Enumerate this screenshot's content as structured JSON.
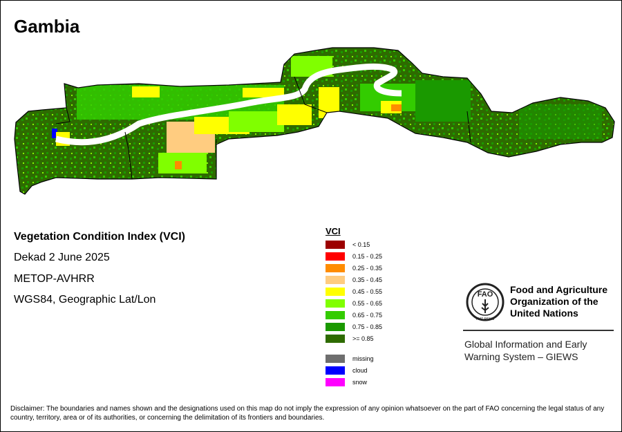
{
  "title": "Gambia",
  "meta": {
    "index_name": "Vegetation Condition Index (VCI)",
    "period": "Dekad 2 June 2025",
    "sensor": "METOP-AVHRR",
    "projection": "WGS84, Geographic Lat/Lon"
  },
  "legend": {
    "title": "VCI",
    "classes": [
      {
        "label": "< 0.15",
        "color": "#9c0000"
      },
      {
        "label": "0.15 - 0.25",
        "color": "#ff0000"
      },
      {
        "label": "0.25 - 0.35",
        "color": "#ff8c00"
      },
      {
        "label": "0.35 - 0.45",
        "color": "#ffcc80"
      },
      {
        "label": "0.45 - 0.55",
        "color": "#ffff00"
      },
      {
        "label": "0.55 - 0.65",
        "color": "#80ff00"
      },
      {
        "label": "0.65 - 0.75",
        "color": "#33cc00"
      },
      {
        "label": "0.75 - 0.85",
        "color": "#1a9900"
      },
      {
        "label": ">= 0.85",
        "color": "#2e6b00"
      }
    ],
    "special": [
      {
        "label": "missing",
        "color": "#6e6e6e"
      },
      {
        "label": "cloud",
        "color": "#0000ff"
      },
      {
        "label": "snow",
        "color": "#ff00ff"
      }
    ]
  },
  "organization": {
    "name_line1": "Food and Agriculture",
    "name_line2": "Organization of the",
    "name_line3": "United Nations",
    "logo_text": "FAO",
    "logo_motto": "FIAT PANIS",
    "system_line1": "Global Information and Early",
    "system_line2": "Warning System – GIEWS"
  },
  "disclaimer": "Disclaimer: The boundaries and names shown and the designations used on this map do not imply the expression of any opinion whatsoever on the part of FAO concerning the legal status of any country, territory, area or of its authorities, or concerning the delimitation of its frontiers and boundaries."
}
